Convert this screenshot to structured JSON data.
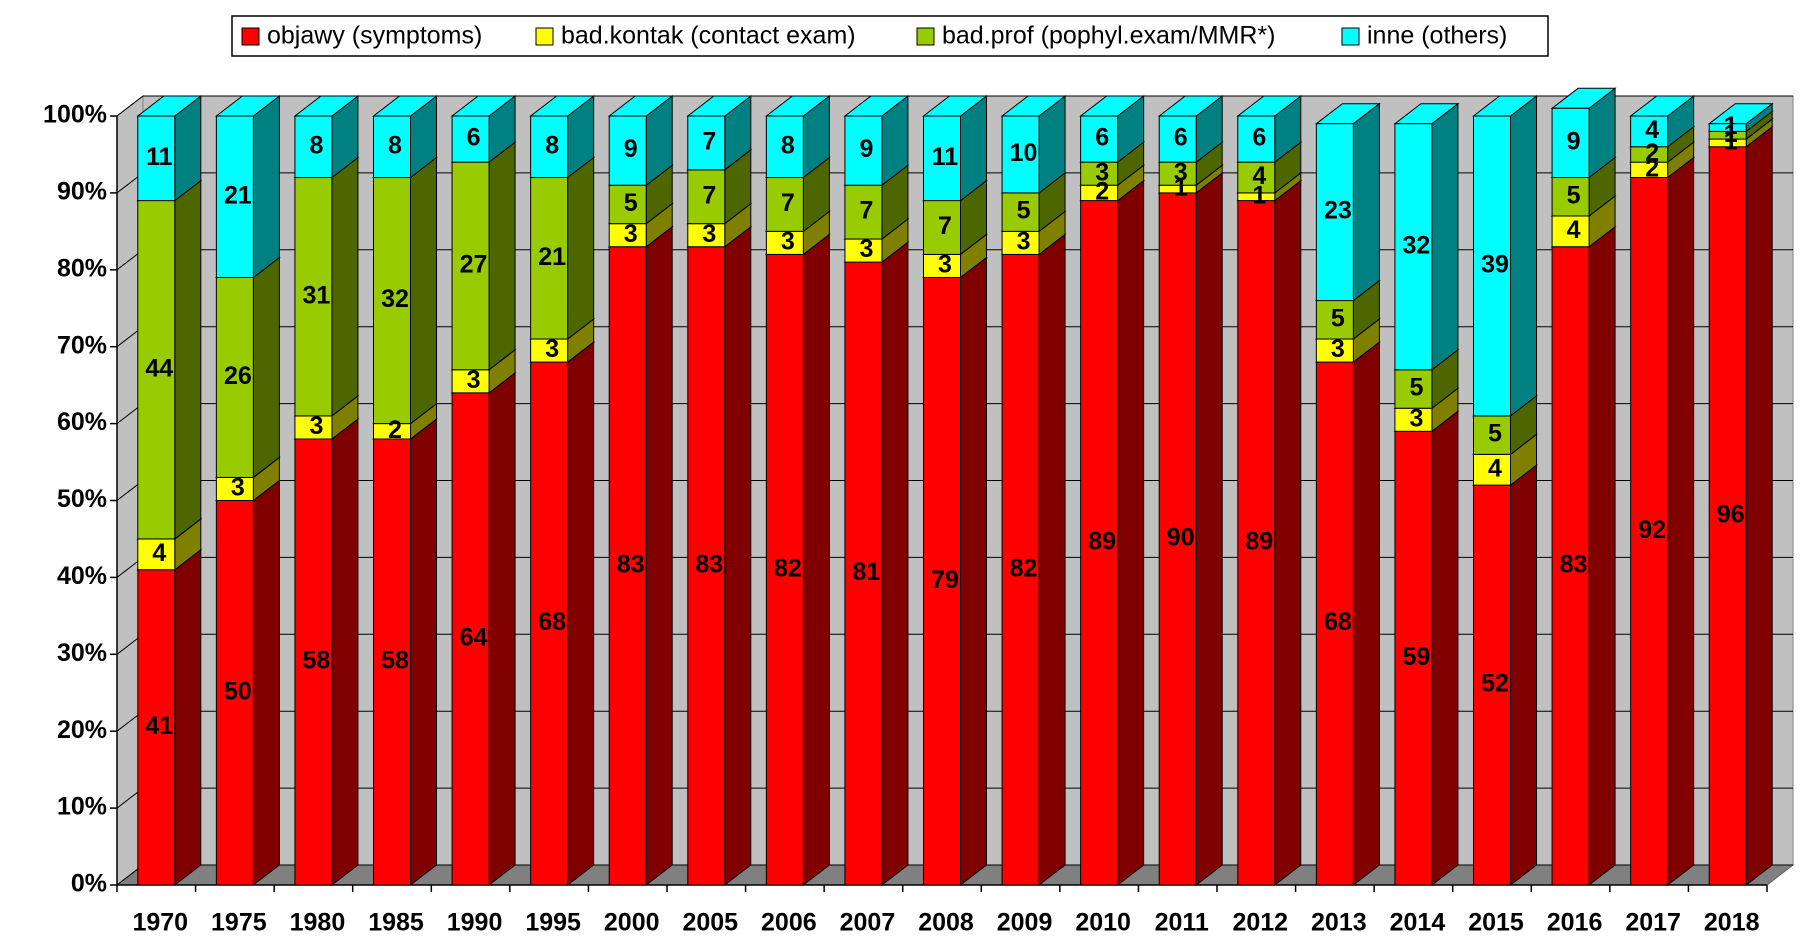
{
  "chart_data": {
    "type": "stacked-bar-3d",
    "categories": [
      "1970",
      "1975",
      "1980",
      "1985",
      "1990",
      "1995",
      "2000",
      "2005",
      "2006",
      "2007",
      "2008",
      "2009",
      "2010",
      "2011",
      "2012",
      "2013",
      "2014",
      "2015",
      "2016",
      "2017",
      "2018"
    ],
    "series": [
      {
        "name": "objawy (symptoms)",
        "color": "#ff0000",
        "side": "#800000",
        "values": [
          41,
          50,
          58,
          58,
          64,
          68,
          83,
          83,
          82,
          81,
          79,
          82,
          89,
          90,
          89,
          68,
          59,
          52,
          83,
          92,
          96
        ]
      },
      {
        "name": "bad.kontak (contact exam)",
        "color": "#ffff00",
        "side": "#808000",
        "values": [
          4,
          3,
          3,
          2,
          3,
          3,
          3,
          3,
          3,
          3,
          3,
          3,
          2,
          1,
          1,
          3,
          3,
          4,
          4,
          2,
          1
        ]
      },
      {
        "name": "bad.prof (pophyl.exam/MMR*)",
        "color": "#99cc00",
        "side": "#4d6600",
        "values": [
          44,
          26,
          31,
          32,
          27,
          21,
          5,
          7,
          7,
          7,
          7,
          5,
          3,
          3,
          4,
          5,
          5,
          5,
          5,
          2,
          1
        ]
      },
      {
        "name": "inne (others)",
        "color": "#00ffff",
        "side": "#008080",
        "values": [
          11,
          21,
          8,
          8,
          6,
          8,
          9,
          7,
          8,
          9,
          11,
          10,
          6,
          6,
          6,
          23,
          32,
          39,
          9,
          4,
          1
        ]
      }
    ],
    "ylim": [
      0,
      100
    ],
    "yticks": [
      {
        "value": 0,
        "label": "0%"
      },
      {
        "value": 10,
        "label": "10%"
      },
      {
        "value": 20,
        "label": "20%"
      },
      {
        "value": 30,
        "label": "30%"
      },
      {
        "value": 40,
        "label": "40%"
      },
      {
        "value": 50,
        "label": "50%"
      },
      {
        "value": 60,
        "label": "60%"
      },
      {
        "value": 70,
        "label": "70%"
      },
      {
        "value": 80,
        "label": "80%"
      },
      {
        "value": 90,
        "label": "90%"
      },
      {
        "value": 100,
        "label": "100%"
      }
    ],
    "grid": true,
    "legend": "top"
  }
}
